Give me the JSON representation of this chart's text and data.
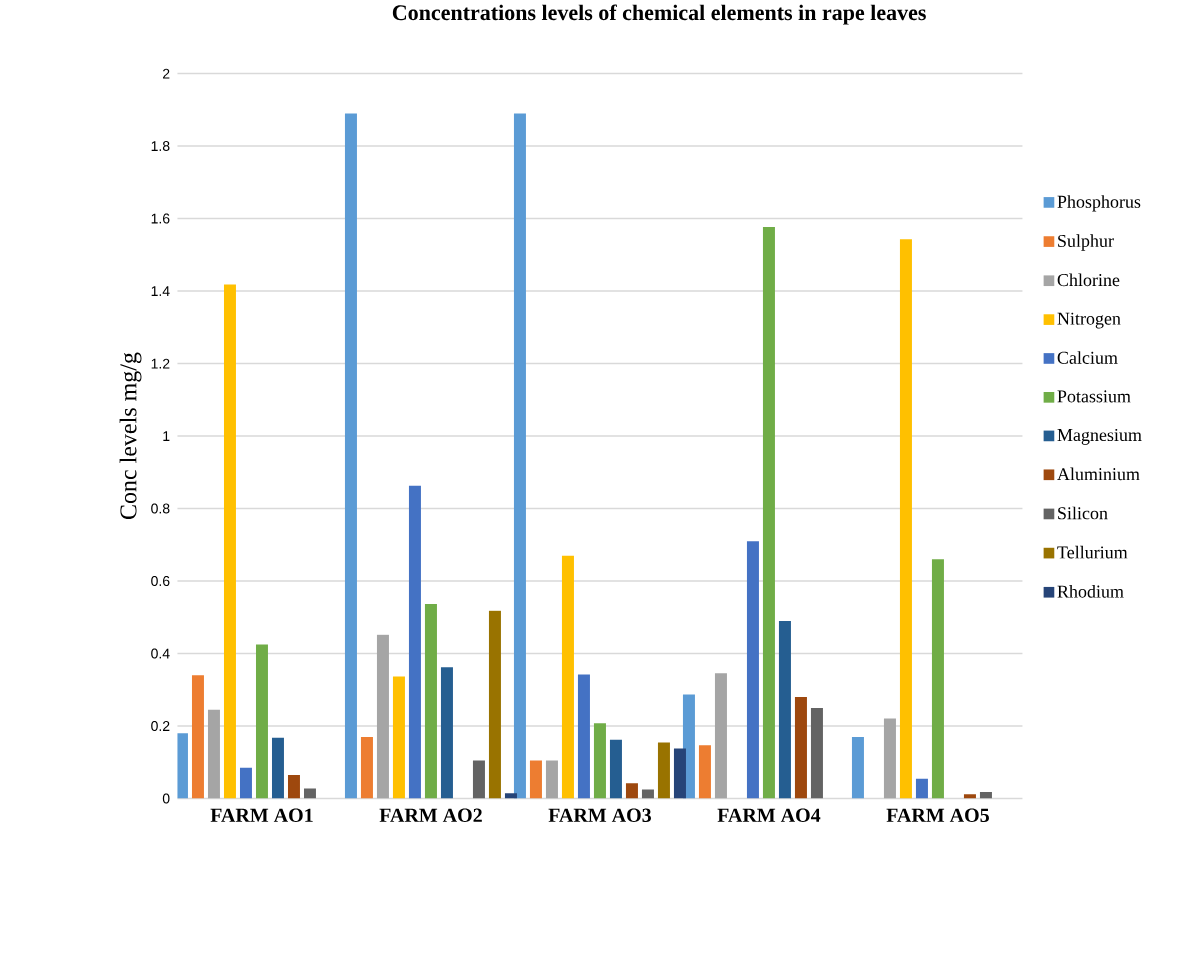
{
  "chart_data": {
    "type": "bar",
    "title": "Concentrations levels of chemical elements in rape leaves",
    "ylabel": "Conc levels mg/g",
    "categories": [
      "FARM AO1",
      "FARM AO2",
      "FARM AO3",
      "FARM AO4",
      "FARM AO5"
    ],
    "series": [
      {
        "name": "Phosphorus",
        "color": "#5b9bd5",
        "values": [
          0.18,
          1.89,
          1.89,
          0.287,
          0.17
        ]
      },
      {
        "name": "Sulphur",
        "color": "#ed7d31",
        "values": [
          0.34,
          0.17,
          0.105,
          0.147,
          0
        ]
      },
      {
        "name": "Chlorine",
        "color": "#a5a5a5",
        "values": [
          0.245,
          0.452,
          0.105,
          0.346,
          0.221
        ]
      },
      {
        "name": "Nitrogen",
        "color": "#ffc000",
        "values": [
          1.418,
          0.337,
          0.67,
          0,
          1.543
        ]
      },
      {
        "name": "Calcium",
        "color": "#4472c4",
        "values": [
          0.085,
          0.863,
          0.342,
          0.71,
          0.055
        ]
      },
      {
        "name": "Potassium",
        "color": "#70ad47",
        "values": [
          0.425,
          0.537,
          0.208,
          1.577,
          0.66
        ]
      },
      {
        "name": "Magnesium",
        "color": "#255e91",
        "values": [
          0.168,
          0.362,
          0.162,
          0.49,
          0
        ]
      },
      {
        "name": "Aluminium",
        "color": "#9e480e",
        "values": [
          0.065,
          0,
          0.042,
          0.28,
          0.012
        ]
      },
      {
        "name": "Silicon",
        "color": "#636363",
        "values": [
          0.028,
          0.105,
          0.025,
          0.25,
          0.018
        ]
      },
      {
        "name": "Tellurium",
        "color": "#997300",
        "values": [
          0,
          0.518,
          0.155,
          0,
          0
        ]
      },
      {
        "name": "Rhodium",
        "color": "#264478",
        "values": [
          0,
          0.015,
          0.138,
          0,
          0
        ]
      }
    ],
    "ylim": [
      0,
      2
    ],
    "yticks": [
      0,
      0.2,
      0.4,
      0.6,
      0.8,
      1,
      1.2,
      1.4,
      1.6,
      1.8,
      2
    ],
    "grid": "y",
    "legend": "right"
  }
}
